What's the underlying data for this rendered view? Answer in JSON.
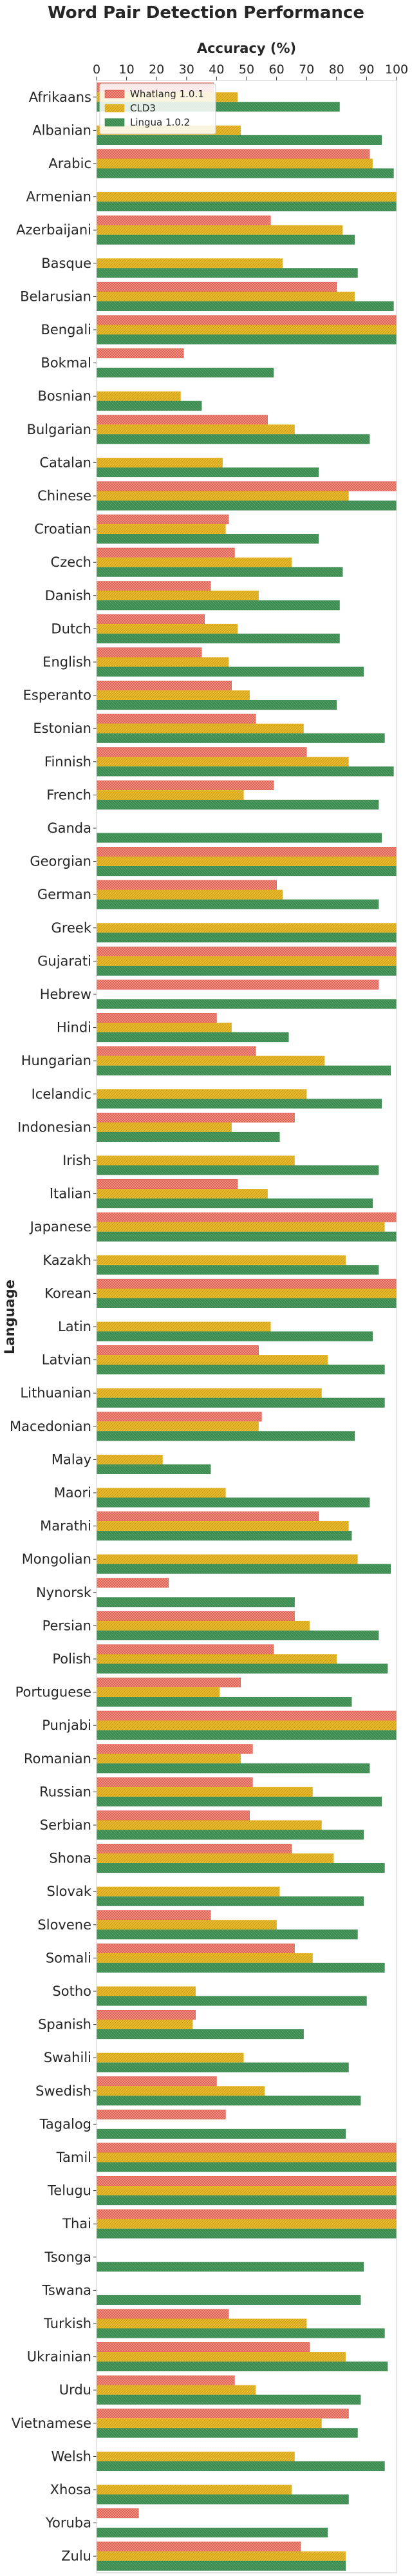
{
  "chart_data": {
    "type": "bar",
    "orientation": "horizontal",
    "title": "Word Pair Detection Performance",
    "xlabel": "Accuracy (%)",
    "ylabel": "Language",
    "xlim": [
      0,
      100
    ],
    "x_ticks": [
      "0",
      "10",
      "20",
      "30",
      "40",
      "50",
      "60",
      "70",
      "80",
      "90",
      "100"
    ],
    "x_axis_position": "top",
    "grid": false,
    "legend_position": "top-left",
    "categories": [
      "Afrikaans",
      "Albanian",
      "Arabic",
      "Armenian",
      "Azerbaijani",
      "Basque",
      "Belarusian",
      "Bengali",
      "Bokmal",
      "Bosnian",
      "Bulgarian",
      "Catalan",
      "Chinese",
      "Croatian",
      "Czech",
      "Danish",
      "Dutch",
      "English",
      "Esperanto",
      "Estonian",
      "Finnish",
      "French",
      "Ganda",
      "Georgian",
      "German",
      "Greek",
      "Gujarati",
      "Hebrew",
      "Hindi",
      "Hungarian",
      "Icelandic",
      "Indonesian",
      "Irish",
      "Italian",
      "Japanese",
      "Kazakh",
      "Korean",
      "Latin",
      "Latvian",
      "Lithuanian",
      "Macedonian",
      "Malay",
      "Maori",
      "Marathi",
      "Mongolian",
      "Nynorsk",
      "Persian",
      "Polish",
      "Portuguese",
      "Punjabi",
      "Romanian",
      "Russian",
      "Serbian",
      "Shona",
      "Slovak",
      "Slovene",
      "Somali",
      "Sotho",
      "Spanish",
      "Swahili",
      "Swedish",
      "Tagalog",
      "Tamil",
      "Telugu",
      "Thai",
      "Tsonga",
      "Tswana",
      "Turkish",
      "Ukrainian",
      "Urdu",
      "Vietnamese",
      "Welsh",
      "Xhosa",
      "Yoruba",
      "Zulu"
    ],
    "series": [
      {
        "name": "Whatlang 1.0.1",
        "color": "#e05a4b",
        "values": [
          39,
          null,
          91,
          null,
          58,
          null,
          80,
          100,
          29,
          null,
          57,
          null,
          100,
          44,
          46,
          38,
          36,
          35,
          45,
          53,
          70,
          59,
          null,
          100,
          60,
          null,
          100,
          94,
          40,
          53,
          null,
          66,
          null,
          47,
          100,
          null,
          100,
          null,
          54,
          null,
          55,
          null,
          null,
          74,
          null,
          24,
          66,
          59,
          48,
          100,
          52,
          52,
          51,
          65,
          null,
          38,
          66,
          null,
          33,
          null,
          40,
          43,
          100,
          100,
          100,
          null,
          null,
          44,
          71,
          46,
          84,
          null,
          null,
          14,
          68
        ]
      },
      {
        "name": "CLD3",
        "color": "#e8b92a",
        "values": [
          47,
          48,
          92,
          100,
          82,
          62,
          86,
          100,
          null,
          28,
          66,
          42,
          84,
          43,
          65,
          54,
          47,
          44,
          51,
          69,
          84,
          49,
          null,
          100,
          62,
          100,
          100,
          null,
          45,
          76,
          70,
          45,
          66,
          57,
          96,
          83,
          100,
          58,
          77,
          75,
          54,
          22,
          43,
          84,
          87,
          null,
          71,
          80,
          41,
          100,
          48,
          72,
          75,
          79,
          61,
          60,
          72,
          33,
          32,
          49,
          56,
          null,
          100,
          100,
          100,
          null,
          null,
          70,
          83,
          53,
          75,
          66,
          65,
          null,
          83
        ]
      },
      {
        "name": "Lingua 1.0.2",
        "color": "#3d8b51",
        "values": [
          81,
          95,
          99,
          100,
          86,
          87,
          99,
          100,
          59,
          35,
          91,
          74,
          100,
          74,
          82,
          81,
          81,
          89,
          80,
          96,
          99,
          94,
          95,
          100,
          94,
          100,
          100,
          100,
          64,
          98,
          95,
          61,
          94,
          92,
          100,
          94,
          100,
          92,
          96,
          96,
          86,
          38,
          91,
          85,
          98,
          66,
          94,
          97,
          85,
          100,
          91,
          95,
          89,
          96,
          89,
          87,
          96,
          90,
          69,
          84,
          88,
          83,
          100,
          100,
          100,
          89,
          88,
          96,
          97,
          88,
          87,
          96,
          84,
          77,
          83
        ]
      }
    ]
  }
}
